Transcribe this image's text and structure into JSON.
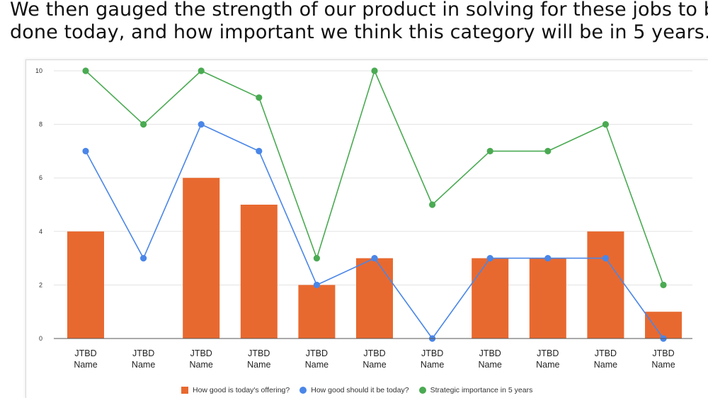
{
  "slide": {
    "title_line1": "We then gauged the strength of our product in solving for these jobs to be",
    "title_line2": "done today, and how important we think this category will be in 5 years."
  },
  "colors": {
    "bar": "#e8692f",
    "good_today_line": "#4a86e8",
    "strategic_line": "#4aaa52",
    "grid": "#e3e3e3",
    "axis": "#555555",
    "tick_text": "#333333"
  },
  "chart_data": {
    "type": "bar",
    "categories": [
      [
        "JTBD",
        "Name"
      ],
      [
        "JTBD",
        "Name"
      ],
      [
        "JTBD",
        "Name"
      ],
      [
        "JTBD",
        "Name"
      ],
      [
        "JTBD",
        "Name"
      ],
      [
        "JTBD",
        "Name"
      ],
      [
        "JTBD",
        "Name"
      ],
      [
        "JTBD",
        "Name"
      ],
      [
        "JTBD",
        "Name"
      ],
      [
        "JTBD",
        "Name"
      ],
      [
        "JTBD",
        "Name"
      ]
    ],
    "series": [
      {
        "name": "How good is today's offering?",
        "type": "bar",
        "values": [
          4,
          0,
          6,
          5,
          2,
          3,
          0,
          3,
          3,
          4,
          1
        ]
      },
      {
        "name": "How good should it be today?",
        "type": "line",
        "values": [
          7,
          3,
          8,
          7,
          2,
          3,
          0,
          3,
          3,
          3,
          0
        ]
      },
      {
        "name": "Strategic importance in 5 years",
        "type": "line",
        "values": [
          10,
          8,
          10,
          9,
          3,
          10,
          5,
          7,
          7,
          8,
          2
        ]
      }
    ],
    "y_ticks": [
      "0",
      "2",
      "4",
      "6",
      "8",
      "10"
    ],
    "ylim": [
      0,
      10
    ],
    "title": "",
    "xlabel": "",
    "ylabel": "",
    "grid": true,
    "legend_position": "bottom"
  }
}
